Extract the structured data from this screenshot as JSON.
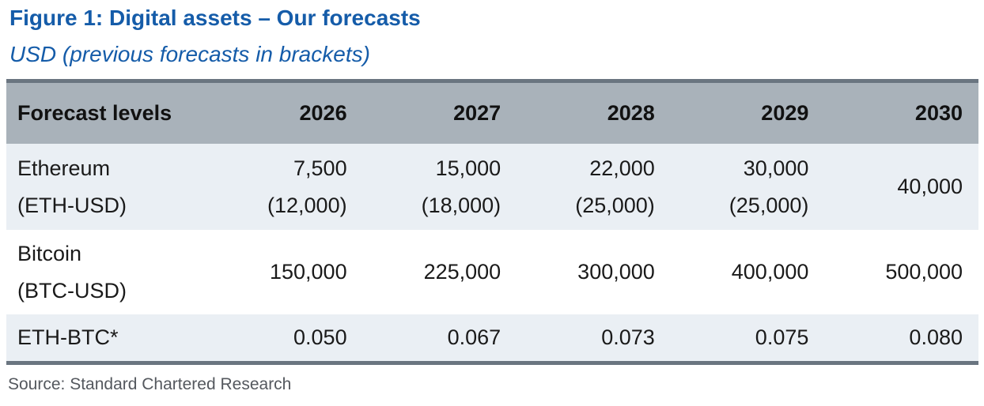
{
  "figure": {
    "title": "Figure 1: Digital assets – Our forecasts",
    "subtitle": "USD (previous forecasts in brackets)",
    "source": "Source: Standard Chartered Research"
  },
  "table": {
    "columns": [
      "Forecast levels",
      "2026",
      "2027",
      "2028",
      "2029",
      "2030"
    ],
    "rows": [
      {
        "label": "Ethereum",
        "sublabel": "(ETH-USD)",
        "forecasts": [
          "7,500",
          "15,000",
          "22,000",
          "30,000",
          "40,000"
        ],
        "previous": [
          "(12,000)",
          "(18,000)",
          "(25,000)",
          "(25,000)",
          ""
        ]
      },
      {
        "label": "Bitcoin",
        "sublabel": "(BTC-USD)",
        "forecasts": [
          "150,000",
          "225,000",
          "300,000",
          "400,000",
          "500,000"
        ],
        "previous": [
          "",
          "",
          "",
          "",
          ""
        ]
      },
      {
        "label": "ETH-BTC*",
        "sublabel": "",
        "forecasts": [
          "0.050",
          "0.067",
          "0.073",
          "0.075",
          "0.080"
        ],
        "previous": [
          "",
          "",
          "",
          "",
          ""
        ]
      }
    ]
  },
  "colors": {
    "title_blue": "#155CA9",
    "header_bg": "#A9B2BA",
    "row_shaded_bg": "#EAEFF4",
    "row_white_bg": "#FFFFFF",
    "table_rule": "#6A7580",
    "source_text": "#54585E",
    "table_text": "#1A1A1A"
  },
  "chart_data": {
    "type": "table",
    "title": "Figure 1: Digital assets – Our forecasts",
    "subtitle": "USD (previous forecasts in brackets)",
    "columns": [
      "Forecast levels",
      "2026",
      "2027",
      "2028",
      "2029",
      "2030"
    ],
    "x": [
      "2026",
      "2027",
      "2028",
      "2029",
      "2030"
    ],
    "series": [
      {
        "name": "Ethereum (ETH-USD)",
        "values": [
          7500,
          15000,
          22000,
          30000,
          40000
        ],
        "previous_forecasts": [
          12000,
          18000,
          25000,
          25000,
          null
        ]
      },
      {
        "name": "Bitcoin (BTC-USD)",
        "values": [
          150000,
          225000,
          300000,
          400000,
          500000
        ]
      },
      {
        "name": "ETH-BTC*",
        "values": [
          0.05,
          0.067,
          0.073,
          0.075,
          0.08
        ]
      }
    ],
    "source": "Source: Standard Chartered Research"
  }
}
